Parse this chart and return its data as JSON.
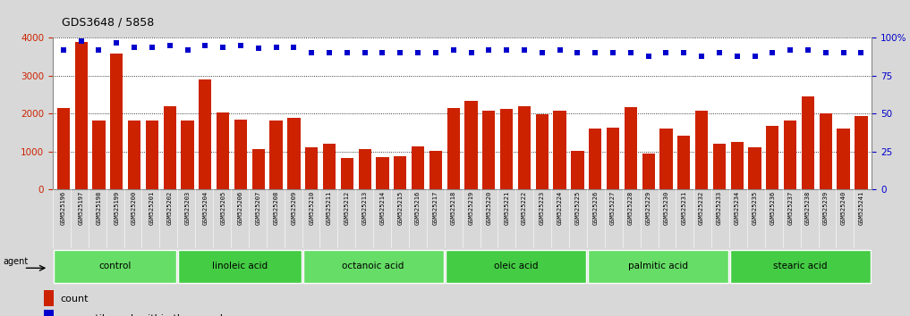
{
  "title": "GDS3648 / 5858",
  "categories": [
    "GSM525196",
    "GSM525197",
    "GSM525198",
    "GSM525199",
    "GSM525200",
    "GSM525201",
    "GSM525202",
    "GSM525203",
    "GSM525204",
    "GSM525205",
    "GSM525206",
    "GSM525207",
    "GSM525208",
    "GSM525209",
    "GSM525210",
    "GSM525211",
    "GSM525212",
    "GSM525213",
    "GSM525214",
    "GSM525215",
    "GSM525216",
    "GSM525217",
    "GSM525218",
    "GSM525219",
    "GSM525220",
    "GSM525221",
    "GSM525222",
    "GSM525223",
    "GSM525224",
    "GSM525225",
    "GSM525226",
    "GSM525227",
    "GSM525228",
    "GSM525229",
    "GSM525230",
    "GSM525231",
    "GSM525232",
    "GSM525233",
    "GSM525234",
    "GSM525235",
    "GSM525236",
    "GSM525237",
    "GSM525238",
    "GSM525239",
    "GSM525240",
    "GSM525241"
  ],
  "bar_values": [
    2150,
    3900,
    1820,
    3580,
    1820,
    1820,
    2200,
    1830,
    2900,
    2030,
    1840,
    1080,
    1830,
    1900,
    1120,
    1210,
    830,
    1080,
    850,
    890,
    1150,
    1020,
    2150,
    2350,
    2080,
    2130,
    2200,
    1980,
    2070,
    1030,
    1620,
    1630,
    2180,
    950,
    1600,
    1430,
    2080,
    1200,
    1260,
    1120,
    1670,
    1830,
    2450,
    2020,
    1600,
    1930
  ],
  "percentile_values": [
    92,
    98,
    92,
    97,
    94,
    94,
    95,
    92,
    95,
    94,
    95,
    93,
    94,
    94,
    90,
    90,
    90,
    90,
    90,
    90,
    90,
    90,
    92,
    90,
    92,
    92,
    92,
    90,
    92,
    90,
    90,
    90,
    90,
    88,
    90,
    90,
    88,
    90,
    88,
    88,
    90,
    92,
    92,
    90,
    90,
    90
  ],
  "groups": [
    {
      "label": "control",
      "start": 0,
      "end": 7
    },
    {
      "label": "linoleic acid",
      "start": 7,
      "end": 14
    },
    {
      "label": "octanoic acid",
      "start": 14,
      "end": 22
    },
    {
      "label": "oleic acid",
      "start": 22,
      "end": 30
    },
    {
      "label": "palmitic acid",
      "start": 30,
      "end": 38
    },
    {
      "label": "stearic acid",
      "start": 38,
      "end": 46
    }
  ],
  "group_color": "#66dd66",
  "group_color_dark": "#44cc44",
  "bar_color": "#cc2200",
  "dot_color": "#0000cc",
  "ylim_left": [
    0,
    4000
  ],
  "ylim_right": [
    0,
    100
  ],
  "yticks_left": [
    0,
    1000,
    2000,
    3000,
    4000
  ],
  "yticks_right": [
    0,
    25,
    50,
    75,
    100
  ],
  "background_color": "#d8d8d8",
  "plot_bg_color": "#ffffff",
  "xticklabel_bg": "#d0d0d0"
}
